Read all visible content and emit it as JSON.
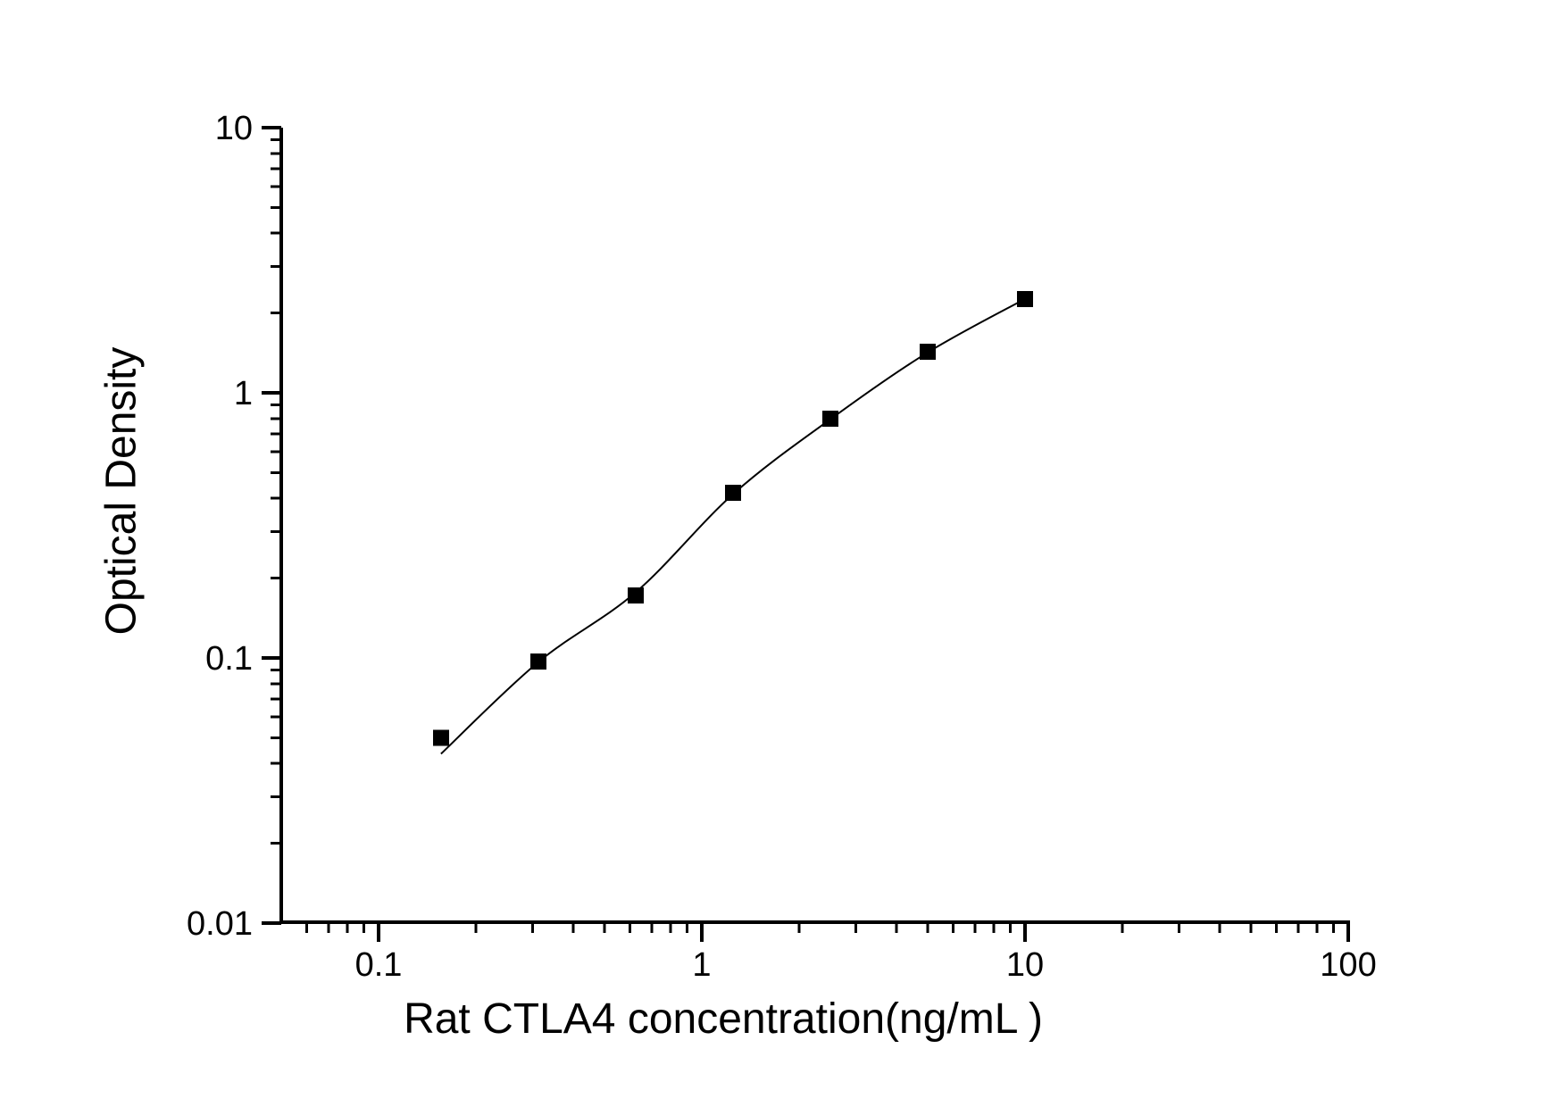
{
  "figure": {
    "background": "#ffffff"
  },
  "chart_data": {
    "type": "scatter",
    "title": "",
    "xlabel": "Rat CTLA4 concentration(ng/mL )",
    "ylabel": "Optical Density",
    "x_scale": "log",
    "y_scale": "log",
    "xlim": [
      0.05,
      100
    ],
    "ylim": [
      0.01,
      10
    ],
    "x_major_ticks": [
      0.1,
      1,
      10,
      100
    ],
    "x_tick_labels": [
      "0.1",
      "1",
      "10",
      "100"
    ],
    "y_major_ticks": [
      10,
      1,
      0.1,
      0.01
    ],
    "y_tick_labels": [
      "10",
      "1",
      "0.1",
      "0.01"
    ],
    "grid": false,
    "legend_position": "none",
    "marker": "filled-square",
    "colors": {
      "axis": "#000000",
      "marker": "#000000",
      "fit_line": "#000000",
      "text": "#000000"
    },
    "series": [
      {
        "name": "standard-curve-points",
        "points": [
          {
            "conc_ng_ml": 0.156,
            "od": 0.05
          },
          {
            "conc_ng_ml": 0.312,
            "od": 0.097
          },
          {
            "conc_ng_ml": 0.625,
            "od": 0.172
          },
          {
            "conc_ng_ml": 1.25,
            "od": 0.42
          },
          {
            "conc_ng_ml": 2.5,
            "od": 0.8
          },
          {
            "conc_ng_ml": 5,
            "od": 1.43
          },
          {
            "conc_ng_ml": 10,
            "od": 2.26
          }
        ]
      }
    ],
    "fit_curve_anchors": [
      {
        "conc_ng_ml": 0.156,
        "od": 0.0435
      },
      {
        "conc_ng_ml": 0.312,
        "od": 0.0965
      },
      {
        "conc_ng_ml": 0.625,
        "od": 0.177
      },
      {
        "conc_ng_ml": 1.25,
        "od": 0.415
      },
      {
        "conc_ng_ml": 2.5,
        "od": 0.795
      },
      {
        "conc_ng_ml": 5,
        "od": 1.42
      },
      {
        "conc_ng_ml": 10,
        "od": 2.26
      }
    ]
  }
}
